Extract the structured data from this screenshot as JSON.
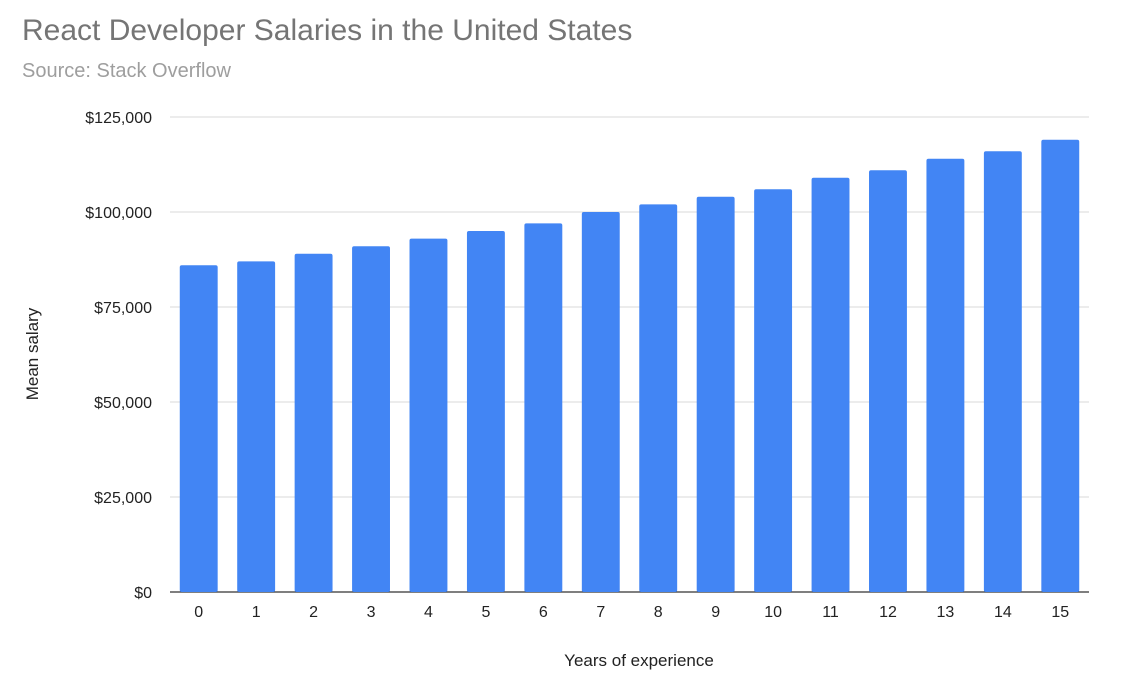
{
  "chart_data": {
    "type": "bar",
    "title": "React Developer Salaries in the United States",
    "subtitle": "Source: Stack Overflow",
    "xlabel": "Years of experience",
    "ylabel": "Mean salary",
    "categories": [
      "0",
      "1",
      "2",
      "3",
      "4",
      "5",
      "6",
      "7",
      "8",
      "9",
      "10",
      "11",
      "12",
      "13",
      "14",
      "15"
    ],
    "values": [
      86000,
      87000,
      89000,
      91000,
      93000,
      95000,
      97000,
      100000,
      102000,
      104000,
      106000,
      109000,
      111000,
      114000,
      116000,
      119000
    ],
    "ylim": [
      0,
      125000
    ],
    "yticks": [
      0,
      25000,
      50000,
      75000,
      100000,
      125000
    ],
    "ytick_labels": [
      "$0",
      "$25,000",
      "$50,000",
      "$75,000",
      "$100,000",
      "$125,000"
    ],
    "grid": true,
    "bar_color": "#4285f4",
    "grid_color": "#d9d9d9"
  }
}
